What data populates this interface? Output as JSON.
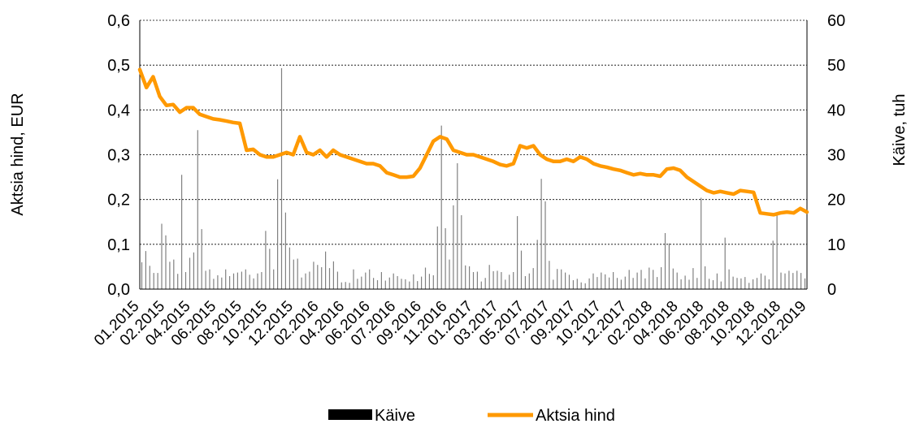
{
  "chart_data": {
    "type": "line",
    "title": "",
    "ylabel": "Aktsia hind, EUR",
    "y2label": "Käive, tuh",
    "ylim": [
      0,
      0.6
    ],
    "y2lim": [
      0,
      60
    ],
    "yticks": [
      "0,0",
      "0,1",
      "0,2",
      "0,3",
      "0,4",
      "0,5",
      "0,6"
    ],
    "y2ticks": [
      "0",
      "10",
      "20",
      "30",
      "40",
      "50",
      "60"
    ],
    "grid": true,
    "legend_position": "bottom",
    "x_tick_labels": [
      "01.2015",
      "02.2015",
      "04.2015",
      "06.2015",
      "08.2015",
      "10.2015",
      "12.2015",
      "02.2016",
      "04.2016",
      "06.2016",
      "07.2016",
      "09.2016",
      "11.2016",
      "01.2017",
      "03.2017",
      "05.2017",
      "07.2017",
      "09.2017",
      "10.2017",
      "12.2017",
      "02.2018",
      "04.2018",
      "06.2018",
      "08.2018",
      "10.2018",
      "12.2018",
      "02.2019"
    ],
    "series": [
      {
        "name": "Käive",
        "type": "bar",
        "axis": "right",
        "color": "#808080",
        "values": [
          6.0,
          8.5,
          5.2,
          3.6,
          3.6,
          14.6,
          12.0,
          6.1,
          6.6,
          3.4,
          25.5,
          3.8,
          7.0,
          8.2,
          35.5,
          13.4,
          4.1,
          4.4,
          2.3,
          3.1,
          2.6,
          4.4,
          2.9,
          3.5,
          3.7,
          3.9,
          4.4,
          3.2,
          2.4,
          3.5,
          3.8,
          13.0,
          9.0,
          4.4,
          24.5,
          49.3,
          17.1,
          9.3,
          6.6,
          6.8,
          2.6,
          3.5,
          3.9,
          6.1,
          5.4,
          4.9,
          8.4,
          4.7,
          6.2,
          3.9,
          1.5,
          1.6,
          1.4,
          4.4,
          2.3,
          2.8,
          3.7,
          4.4,
          2.5,
          2.0,
          3.8,
          1.9,
          2.6,
          3.5,
          2.9,
          2.3,
          2.2,
          1.7,
          3.3,
          1.8,
          2.8,
          4.8,
          3.4,
          3.1,
          14.0,
          36.5,
          13.6,
          6.6,
          18.7,
          28.1,
          16.5,
          5.3,
          5.1,
          3.8,
          3.9,
          1.7,
          2.5,
          5.4,
          4.0,
          4.1,
          3.8,
          2.1,
          3.2,
          3.8,
          16.3,
          8.6,
          2.9,
          3.5,
          4.7,
          11.0,
          24.6,
          19.6,
          6.3,
          2.1,
          4.5,
          4.4,
          3.7,
          3.2,
          2.0,
          2.3,
          1.5,
          1.3,
          2.4,
          3.5,
          2.7,
          3.7,
          3.3,
          2.6,
          3.8,
          2.5,
          2.1,
          2.8,
          4.3,
          2.5,
          3.7,
          4.3,
          2.4,
          4.8,
          4.3,
          2.7,
          4.9,
          12.5,
          10.2,
          4.6,
          3.7,
          2.2,
          3.0,
          2.1,
          4.7,
          2.5,
          20.4,
          5.1,
          2.3,
          2.0,
          3.5,
          1.7,
          11.5,
          4.4,
          2.8,
          2.5,
          2.4,
          2.7,
          1.4,
          2.2,
          2.5,
          3.5,
          3.0,
          2.2,
          10.8,
          16.4,
          3.7,
          3.5,
          4.1,
          3.6,
          4.1,
          3.6,
          2.4
        ]
      },
      {
        "name": "Aktsia hind",
        "type": "line",
        "axis": "left",
        "color": "#ff9900",
        "values": [
          0.49,
          0.45,
          0.474,
          0.43,
          0.41,
          0.412,
          0.395,
          0.405,
          0.405,
          0.39,
          0.385,
          0.38,
          0.378,
          0.375,
          0.372,
          0.37,
          0.31,
          0.312,
          0.3,
          0.295,
          0.295,
          0.3,
          0.305,
          0.3,
          0.34,
          0.305,
          0.3,
          0.31,
          0.295,
          0.31,
          0.3,
          0.295,
          0.29,
          0.285,
          0.28,
          0.28,
          0.275,
          0.26,
          0.255,
          0.25,
          0.25,
          0.252,
          0.27,
          0.3,
          0.33,
          0.34,
          0.335,
          0.31,
          0.305,
          0.3,
          0.3,
          0.295,
          0.29,
          0.285,
          0.278,
          0.275,
          0.28,
          0.32,
          0.315,
          0.32,
          0.3,
          0.29,
          0.285,
          0.285,
          0.29,
          0.285,
          0.295,
          0.29,
          0.28,
          0.275,
          0.272,
          0.268,
          0.265,
          0.26,
          0.255,
          0.258,
          0.255,
          0.255,
          0.252,
          0.268,
          0.27,
          0.265,
          0.25,
          0.24,
          0.23,
          0.22,
          0.215,
          0.218,
          0.215,
          0.212,
          0.22,
          0.218,
          0.216,
          0.17,
          0.168,
          0.166,
          0.17,
          0.172,
          0.17,
          0.18,
          0.172
        ]
      }
    ]
  }
}
